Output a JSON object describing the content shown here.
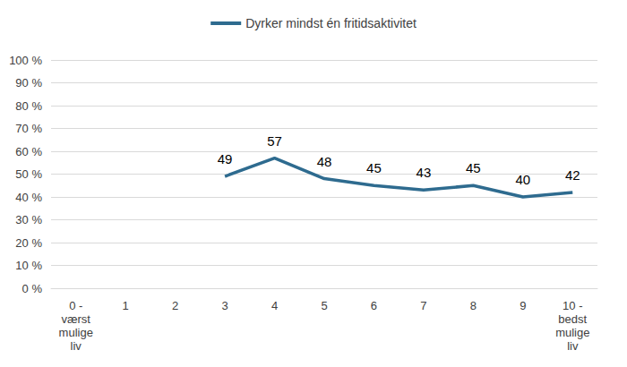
{
  "chart_data": {
    "type": "line",
    "categories": [
      "0 -\nværst\nmulige\nliv",
      "1",
      "2",
      "3",
      "4",
      "5",
      "6",
      "7",
      "8",
      "9",
      "10 -\nbedst\nmulige\nliv"
    ],
    "series": [
      {
        "name": "Dyrker mindst én fritidsaktivitet",
        "color": "#2e6b8f",
        "values": [
          null,
          null,
          null,
          49,
          57,
          48,
          45,
          43,
          45,
          40,
          42
        ]
      }
    ],
    "ylim": [
      0,
      100
    ],
    "yticks": [
      {
        "value": 0,
        "label": "0 %"
      },
      {
        "value": 10,
        "label": "10 %"
      },
      {
        "value": 20,
        "label": "20 %"
      },
      {
        "value": 30,
        "label": "30 %"
      },
      {
        "value": 40,
        "label": "40 %"
      },
      {
        "value": 50,
        "label": "50 %"
      },
      {
        "value": 60,
        "label": "60 %"
      },
      {
        "value": 70,
        "label": "70 %"
      },
      {
        "value": 80,
        "label": "80 %"
      },
      {
        "value": 90,
        "label": "90 %"
      },
      {
        "value": 100,
        "label": "100 %"
      }
    ],
    "grid": true,
    "legend": "top",
    "data_labels": true
  }
}
